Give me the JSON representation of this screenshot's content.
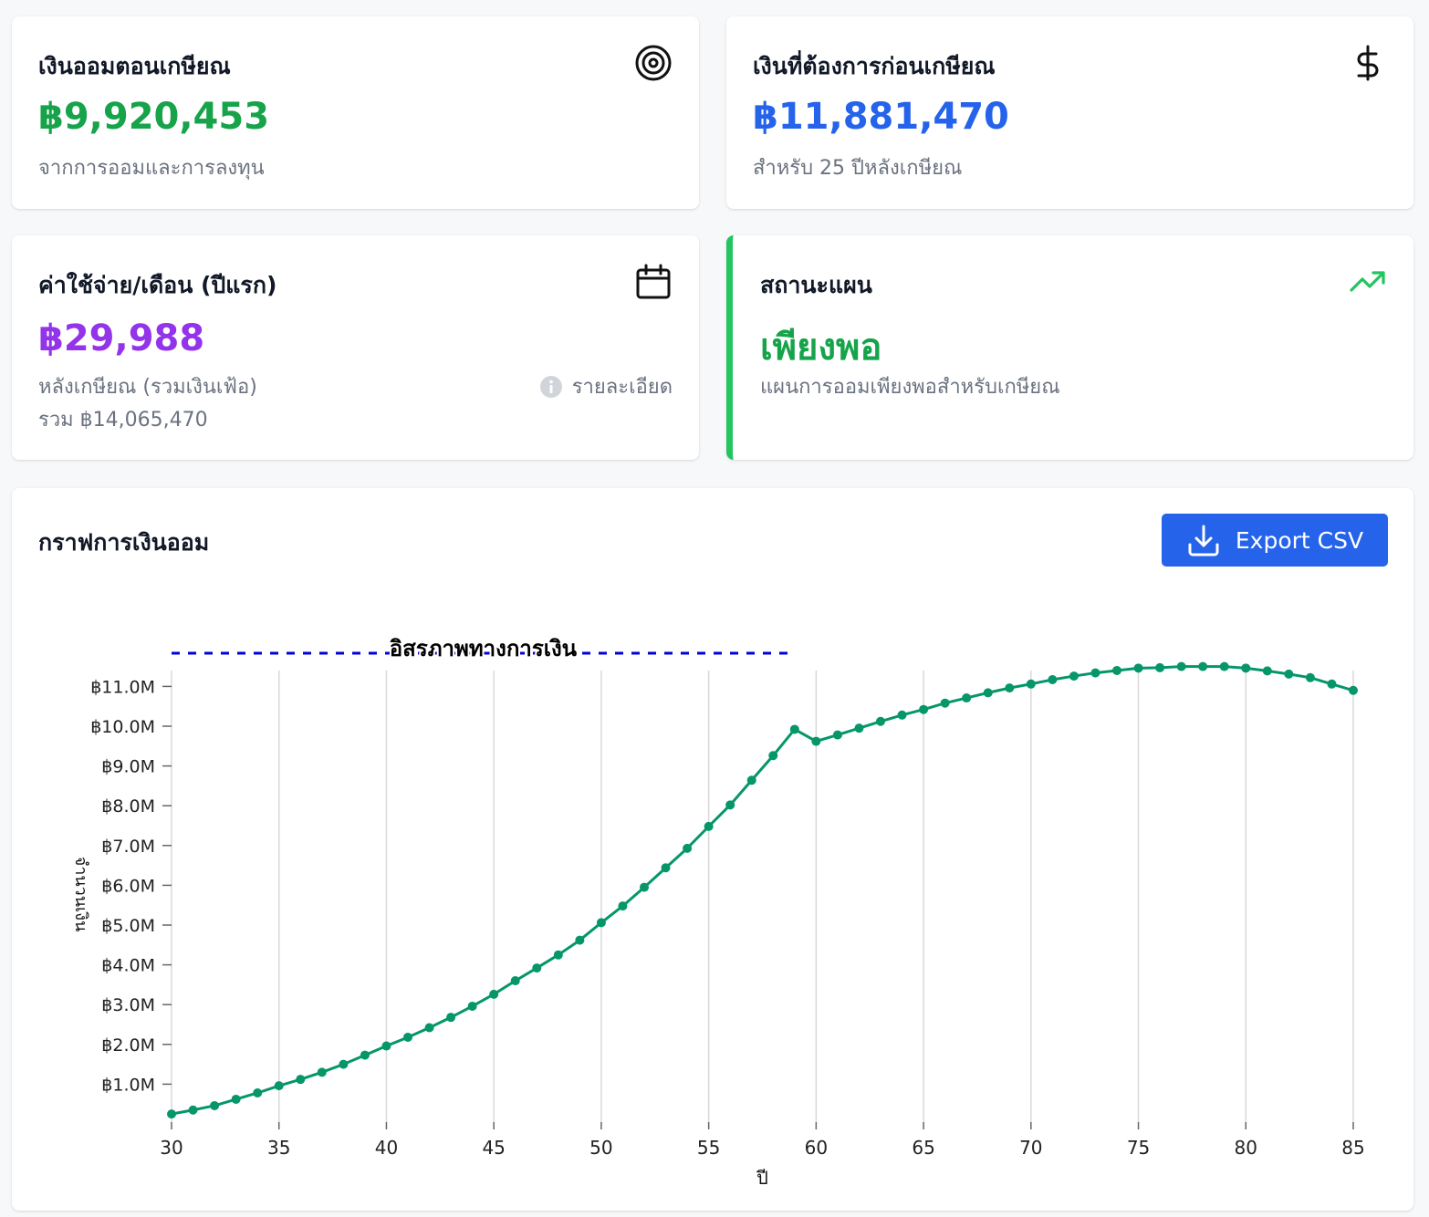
{
  "cards": {
    "savings": {
      "title": "เงินออมตอนเกษียณ",
      "value": "฿9,920,453",
      "subtitle": "จากการออมและการลงทุน",
      "value_color": "#16a34a",
      "icon": "target-icon"
    },
    "required": {
      "title": "เงินที่ต้องการก่อนเกษียณ",
      "value": "฿11,881,470",
      "subtitle": "สำหรับ 25 ปีหลังเกษียณ",
      "value_color": "#2563eb",
      "icon": "dollar-icon"
    },
    "expense": {
      "title": "ค่าใช้จ่าย/เดือน (ปีแรก)",
      "value": "฿29,988",
      "subtitle": "หลังเกษียณ (รวมเงินเฟ้อ)",
      "total": "รวม ฿14,065,470",
      "details_label": "รายละเอียด",
      "value_color": "#9333ea",
      "icon": "calendar-icon"
    },
    "status": {
      "title": "สถานะแผน",
      "value": "เพียงพอ",
      "subtitle": "แผนการออมเพียงพอสำหรับเกษียณ",
      "value_color": "#16a34a",
      "accent_color": "#22c55e",
      "icon": "trending-up-icon"
    }
  },
  "chart_section": {
    "title": "กราฟการเงินออม",
    "export_label": "Export CSV"
  },
  "chart_data": {
    "type": "line",
    "xlabel": "ปี",
    "ylabel": "จำนวนเงิน",
    "xlim": [
      30,
      85
    ],
    "ylim": [
      0,
      11000000
    ],
    "x_ticks": [
      30,
      35,
      40,
      45,
      50,
      55,
      60,
      65,
      70,
      75,
      80,
      85
    ],
    "y_tick_labels": [
      "฿1.0M",
      "฿2.0M",
      "฿3.0M",
      "฿4.0M",
      "฿5.0M",
      "฿6.0M",
      "฿7.0M",
      "฿8.0M",
      "฿9.0M",
      "฿10.0M",
      "฿11.0M"
    ],
    "y_ticks": [
      1000000,
      2000000,
      3000000,
      4000000,
      5000000,
      6000000,
      7000000,
      8000000,
      9000000,
      10000000,
      11000000
    ],
    "grid": "vertical",
    "line_color": "#059669",
    "reference_line": {
      "label": "อิสรภาพทางการเงิน",
      "value": 11881470,
      "x_start": 30,
      "x_end": 59,
      "color": "#0000dd"
    },
    "series": [
      {
        "x": [
          30,
          31,
          32,
          33,
          34,
          35,
          36,
          37,
          38,
          39,
          40,
          41,
          42,
          43,
          44,
          45,
          46,
          47,
          48,
          49,
          50,
          51,
          52,
          53,
          54,
          55,
          56,
          57,
          58,
          59,
          60,
          61,
          62,
          63,
          64,
          65,
          66,
          67,
          68,
          69,
          70,
          71,
          72,
          73,
          74,
          75,
          76,
          77,
          78,
          79,
          80,
          81,
          82,
          83,
          84,
          85
        ],
        "values": [
          250000,
          350000,
          460000,
          620000,
          780000,
          960000,
          1120000,
          1300000,
          1500000,
          1730000,
          1960000,
          2180000,
          2420000,
          2680000,
          2960000,
          3260000,
          3600000,
          3920000,
          4250000,
          4620000,
          5060000,
          5480000,
          5950000,
          6440000,
          6930000,
          7480000,
          8020000,
          8640000,
          9260000,
          9920453,
          9620000,
          9780000,
          9950000,
          10120000,
          10280000,
          10420000,
          10580000,
          10710000,
          10840000,
          10960000,
          11060000,
          11170000,
          11260000,
          11340000,
          11400000,
          11460000,
          11470000,
          11500000,
          11500000,
          11500000,
          11460000,
          11390000,
          11310000,
          11220000,
          11060000,
          10900000
        ]
      }
    ]
  }
}
